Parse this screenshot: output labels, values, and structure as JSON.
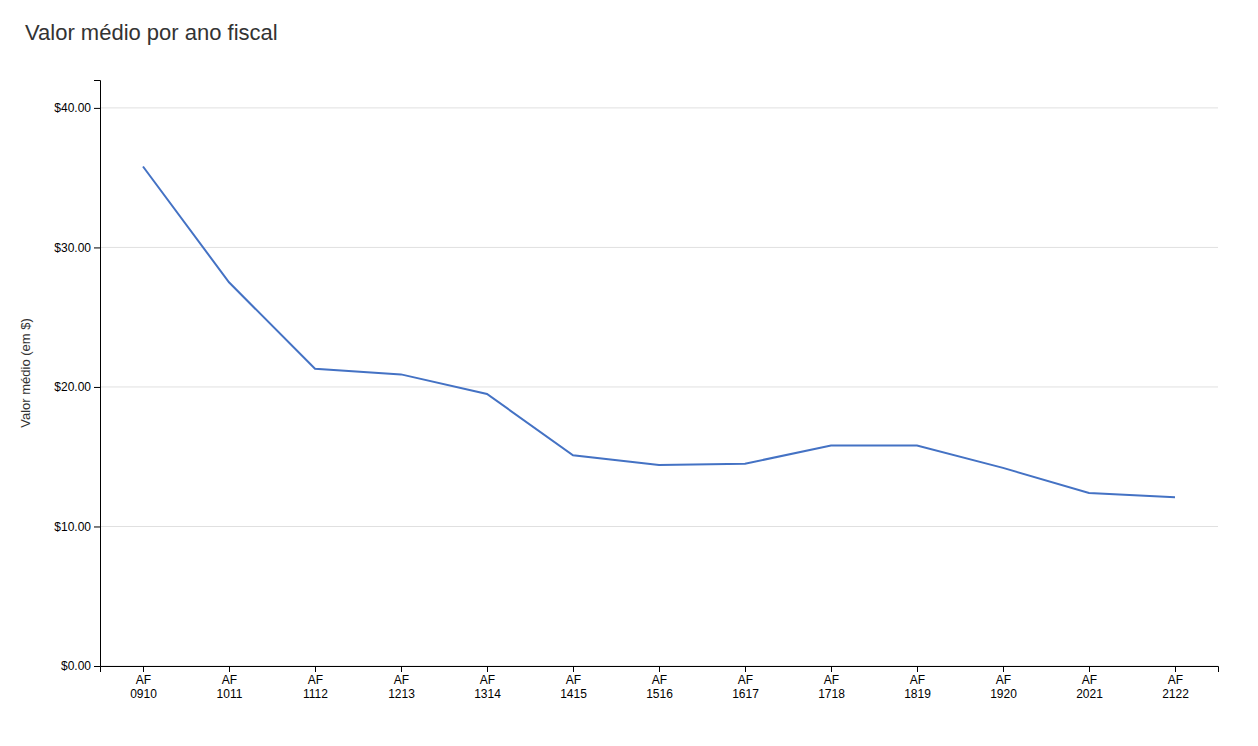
{
  "chart_data": {
    "type": "line",
    "title": "Valor médio por ano fiscal",
    "ylabel": "Valor médio (em $)",
    "categories": [
      "AF\n0910",
      "AF\n1011",
      "AF\n1112",
      "AF\n1213",
      "AF\n1314",
      "AF\n1415",
      "AF\n1516",
      "AF\n1617",
      "AF\n1718",
      "AF\n1819",
      "AF\n1920",
      "AF\n2021",
      "AF\n2122"
    ],
    "values": [
      35.8,
      27.5,
      21.3,
      20.9,
      19.5,
      15.1,
      14.4,
      14.5,
      15.8,
      15.8,
      14.2,
      12.4,
      12.1
    ],
    "color": "#4472c4",
    "ylim": [
      0,
      42
    ],
    "yticks": [
      {
        "value": 0,
        "label": "$0.00"
      },
      {
        "value": 10,
        "label": "$10.00"
      },
      {
        "value": 20,
        "label": "$20.00"
      },
      {
        "value": 30,
        "label": "$30.00"
      },
      {
        "value": 40,
        "label": "$40.00"
      }
    ],
    "grid": true
  }
}
